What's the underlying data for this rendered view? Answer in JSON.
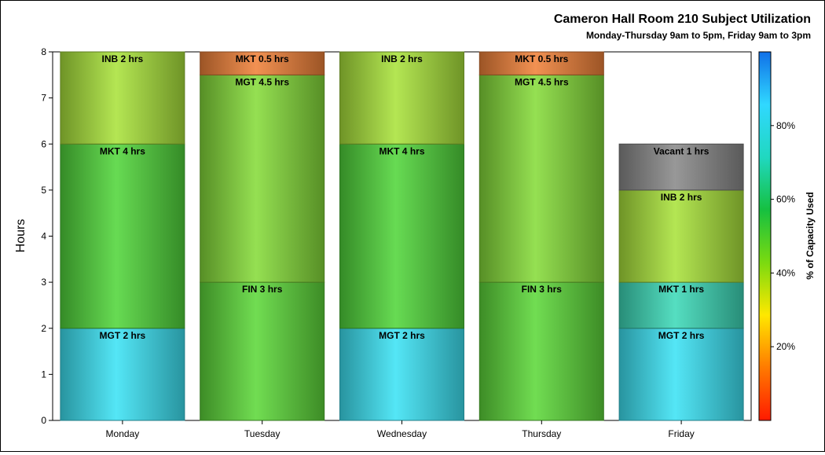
{
  "chart_data": {
    "type": "bar",
    "stacked": true,
    "title": "Cameron Hall Room 210 Subject Utilization",
    "subtitle": "Monday-Thursday 9am to 5pm, Friday 9am to 3pm",
    "xlabel": "",
    "ylabel": "Hours",
    "ylim": [
      0,
      8
    ],
    "yticks": [
      "0",
      "1",
      "2",
      "3",
      "4",
      "5",
      "6",
      "7",
      "8"
    ],
    "categories": [
      "Monday",
      "Tuesday",
      "Wednesday",
      "Thursday",
      "Friday"
    ],
    "bars": [
      {
        "day": "Monday",
        "segments": [
          {
            "label": "MGT 2 hrs",
            "subject": "MGT",
            "hours": 2,
            "color": "#3de3f5"
          },
          {
            "label": "MKT 4 hrs",
            "subject": "MKT",
            "hours": 4,
            "color": "#52d63c"
          },
          {
            "label": "INB 2 hrs",
            "subject": "INB",
            "hours": 2,
            "color": "#aae33c"
          }
        ]
      },
      {
        "day": "Tuesday",
        "segments": [
          {
            "label": "FIN 3 hrs",
            "subject": "FIN",
            "hours": 3,
            "color": "#5ed83a"
          },
          {
            "label": "MGT 4.5 hrs",
            "subject": "MGT",
            "hours": 4.5,
            "color": "#86dc3a"
          },
          {
            "label": "MKT 0.5 hrs",
            "subject": "MKT",
            "hours": 0.5,
            "color": "#f0823a"
          }
        ]
      },
      {
        "day": "Wednesday",
        "segments": [
          {
            "label": "MGT 2 hrs",
            "subject": "MGT",
            "hours": 2,
            "color": "#3de3f5"
          },
          {
            "label": "MKT 4 hrs",
            "subject": "MKT",
            "hours": 4,
            "color": "#52d63c"
          },
          {
            "label": "INB 2 hrs",
            "subject": "INB",
            "hours": 2,
            "color": "#aae33c"
          }
        ]
      },
      {
        "day": "Thursday",
        "segments": [
          {
            "label": "FIN 3 hrs",
            "subject": "FIN",
            "hours": 3,
            "color": "#5ed83a"
          },
          {
            "label": "MGT 4.5 hrs",
            "subject": "MGT",
            "hours": 4.5,
            "color": "#86dc3a"
          },
          {
            "label": "MKT 0.5 hrs",
            "subject": "MKT",
            "hours": 0.5,
            "color": "#f0823a"
          }
        ]
      },
      {
        "day": "Friday",
        "segments": [
          {
            "label": "MGT 2 hrs",
            "subject": "MGT",
            "hours": 2,
            "color": "#3de3f5"
          },
          {
            "label": "MKT 1 hrs",
            "subject": "MKT",
            "hours": 1,
            "color": "#3ed9b8"
          },
          {
            "label": "INB 2 hrs",
            "subject": "INB",
            "hours": 2,
            "color": "#aae33c"
          },
          {
            "label": "Vacant 1 hrs",
            "subject": "Vacant",
            "hours": 1,
            "color": "#8a8a8a"
          }
        ]
      }
    ],
    "colorbar": {
      "label": "% of Capacity Used",
      "range": [
        0,
        100
      ],
      "ticks": [
        "20%",
        "40%",
        "60%",
        "80%"
      ],
      "tick_values": [
        20,
        40,
        60,
        80
      ],
      "stops": [
        "#ff1a00",
        "#ff7a00",
        "#ffe800",
        "#7ada10",
        "#16c040",
        "#20d8c0",
        "#30d8ff",
        "#1070e8"
      ]
    },
    "grid": false,
    "legend": "right (color bar)"
  }
}
